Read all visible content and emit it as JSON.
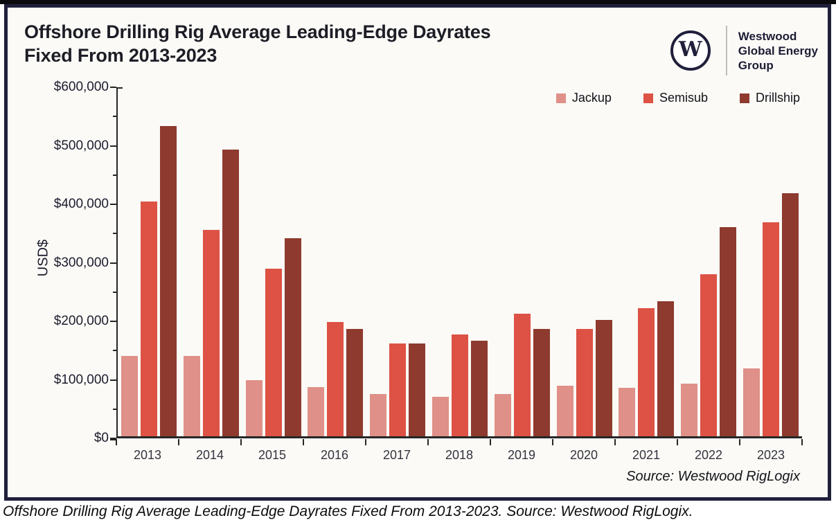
{
  "header": {
    "title_line1": "Offshore Drilling Rig Average Leading-Edge Dayrates",
    "title_line2": "Fixed From 2013-2023"
  },
  "logo": {
    "monogram": "W",
    "company_lines": [
      "Westwood",
      "Global Energy",
      "Group"
    ]
  },
  "legend": [
    {
      "label": "Jackup",
      "color": "#df9088"
    },
    {
      "label": "Semisub",
      "color": "#dd5244"
    },
    {
      "label": "Drillship",
      "color": "#8e3a2f"
    }
  ],
  "chart_data": {
    "type": "bar",
    "title": "Offshore Drilling Rig Average Leading-Edge Dayrates Fixed From 2013-2023",
    "categories": [
      "2013",
      "2014",
      "2015",
      "2016",
      "2017",
      "2018",
      "2019",
      "2020",
      "2021",
      "2022",
      "2023"
    ],
    "series": [
      {
        "name": "Jackup",
        "color": "#df9088",
        "values": [
          138000,
          138000,
          96000,
          84000,
          73000,
          68000,
          73000,
          87000,
          83000,
          91000,
          117000
        ]
      },
      {
        "name": "Semisub",
        "color": "#dd5244",
        "values": [
          403000,
          355000,
          288000,
          196000,
          159000,
          175000,
          211000,
          185000,
          220000,
          278000,
          368000
        ]
      },
      {
        "name": "Drillship",
        "color": "#8e3a2f",
        "values": [
          533000,
          493000,
          341000,
          184000,
          160000,
          164000,
          184000,
          200000,
          232000,
          359000,
          418000
        ]
      }
    ],
    "xlabel": "",
    "ylabel": "USD$",
    "ylim": [
      0,
      600000
    ],
    "yticks": [
      {
        "value": 0,
        "label": "$0"
      },
      {
        "value": 100000,
        "label": "$100,000"
      },
      {
        "value": 200000,
        "label": "$200,000"
      },
      {
        "value": 300000,
        "label": "$300,000"
      },
      {
        "value": 400000,
        "label": "$400,000"
      },
      {
        "value": 500000,
        "label": "$500,000"
      },
      {
        "value": 600000,
        "label": "$600,000"
      }
    ],
    "minor_tick_step": 50000,
    "grid": false,
    "legend_position": "top-right"
  },
  "source_note": "Source: Westwood RigLogix",
  "caption": "Offshore Drilling Rig Average Leading-Edge Dayrates Fixed From 2013-2023. Source: Westwood RigLogix."
}
